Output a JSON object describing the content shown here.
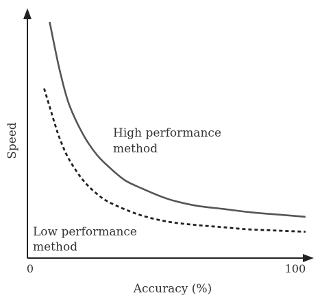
{
  "chart_data": {
    "type": "line",
    "xlabel": "Accuracy (%)",
    "ylabel": "Speed",
    "x_ticks": [
      "0",
      "100"
    ],
    "xlim": [
      0,
      100
    ],
    "ylim": [
      0,
      100
    ],
    "grid": false,
    "legend": "none (inline labels)",
    "series": [
      {
        "name": "High performance method",
        "label_lines": [
          "High performance",
          "method"
        ],
        "style": "solid",
        "color": "#555555",
        "x": [
          8,
          10,
          12,
          15,
          20,
          25,
          30,
          35,
          40,
          50,
          60,
          70,
          80,
          90,
          100
        ],
        "y": [
          97,
          85,
          74,
          61,
          48,
          39,
          33,
          28,
          25,
          20,
          17,
          15.5,
          14,
          13,
          12
        ]
      },
      {
        "name": "Low performance method",
        "label_lines": [
          "Low performance",
          "method"
        ],
        "style": "dashed",
        "color": "#222222",
        "x": [
          6,
          8,
          10,
          12,
          15,
          20,
          25,
          30,
          40,
          50,
          60,
          70,
          80,
          90,
          100
        ],
        "y": [
          68,
          60,
          52,
          45,
          37,
          28,
          22,
          18,
          13,
          10,
          8.5,
          7.5,
          6.5,
          6,
          5.5
        ]
      }
    ]
  }
}
